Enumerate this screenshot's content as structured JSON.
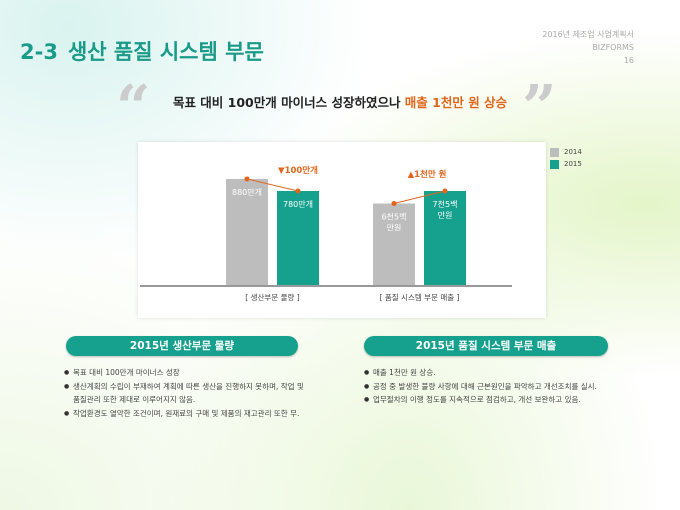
{
  "header": {
    "number": "2-3",
    "title": "생산 품질 시스템 부문",
    "doc_title": "2016년 제조업 사업계획서",
    "brand": "BIZFORMS",
    "page": "16"
  },
  "headline": {
    "text": "목표 대비 100만개 마이너스 성장하였으나 ",
    "highlight": "매출 1천만 원 상승",
    "open_quote": "“",
    "close_quote": "”",
    "highlight_color": "#e0661c"
  },
  "chart_data": {
    "type": "bar",
    "categories": [
      "[ 생산부문 물량 ]",
      "[ 품질 시스템 부문 매출 ]"
    ],
    "series": [
      {
        "name": "2014",
        "color": "#bdbdbd",
        "values": [
          880,
          6500
        ],
        "labels": [
          "880만개",
          "6천5백 만원"
        ]
      },
      {
        "name": "2015",
        "color": "#16a08e",
        "values": [
          780,
          7500
        ],
        "labels": [
          "780만개",
          "7천5백 만원"
        ]
      }
    ],
    "units": [
      "만개",
      "만원"
    ],
    "changes": [
      "▼100만개",
      "▲1천만 원"
    ],
    "change_color": "#e0661c"
  },
  "sections": [
    {
      "title": "2015년 생산부문 물량",
      "items": [
        "목표 대비 100만개 마이너스 성장",
        "생산계획의 수립이 부재하여 계획에 따른 생산을 진행하지 못하며, 작업 및 품질관리 또한 제대로 이루어지지 않음.",
        "작업환경도 열악한 조건이며, 원재료의 구매 및 제품의 재고관리 또한 무."
      ]
    },
    {
      "title": "2015년 품질 시스템 부문 매출",
      "items": [
        "매출 1천만 원 상승.",
        "공정 중 발생한 불량 사항에 대해 근본원인을 파악하고 개선조치를 실시.",
        "업무절차의 이행 정도를 지속적으로 점검하고, 개선 보완하고 있음."
      ]
    }
  ]
}
